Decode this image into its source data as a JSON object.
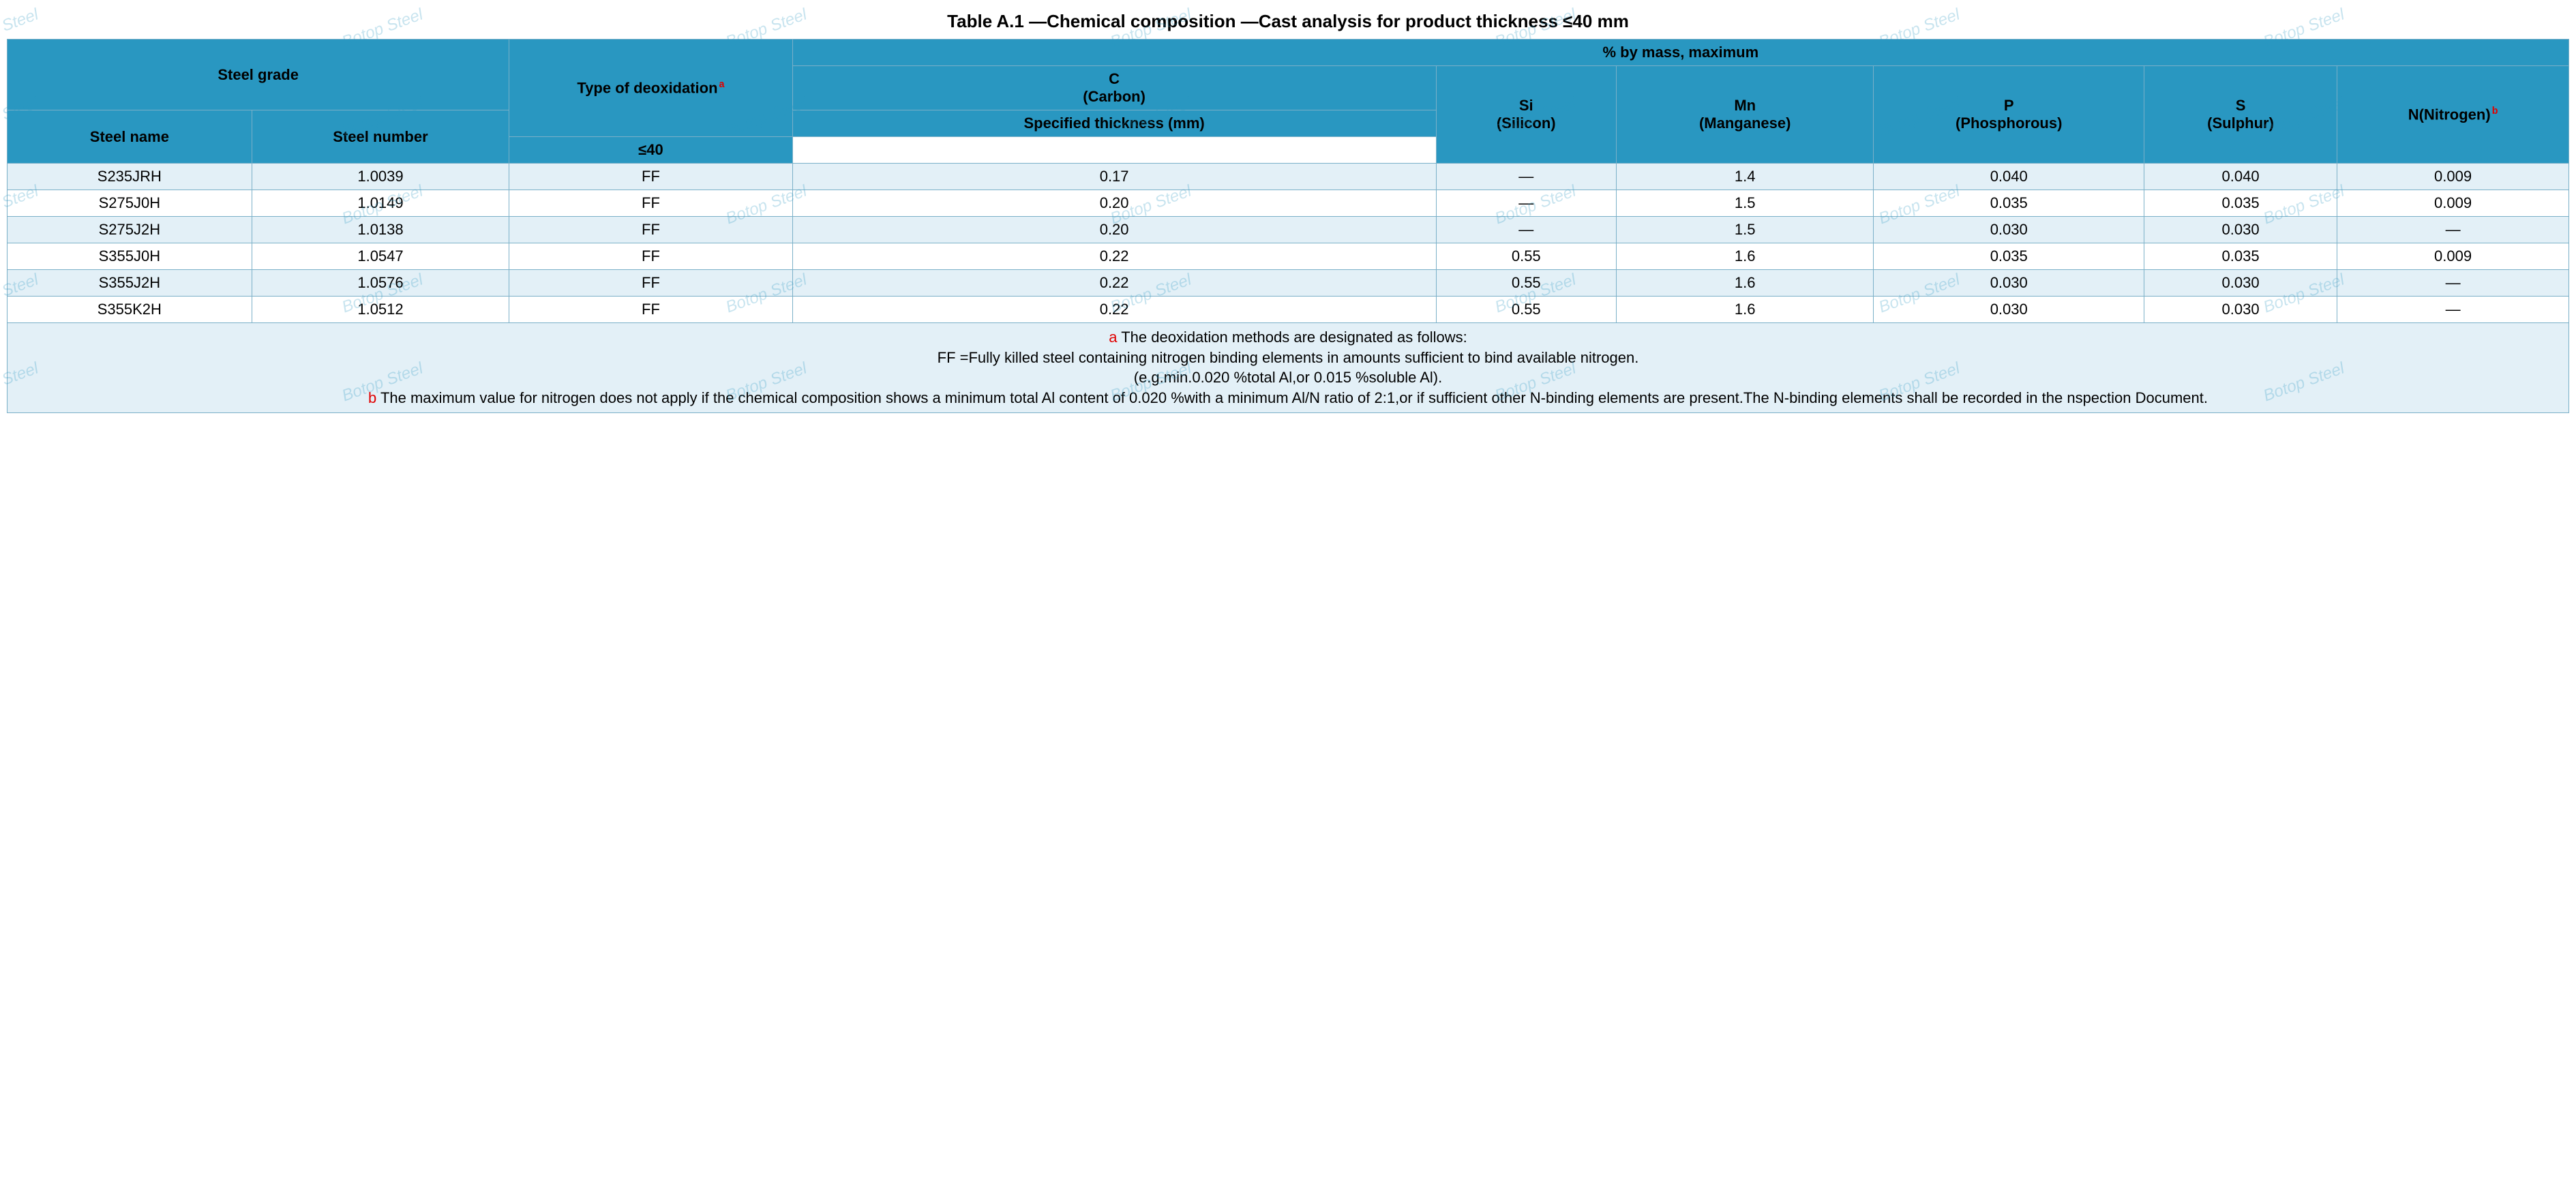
{
  "title": "Table A.1 —Chemical composition —Cast analysis for product thickness ≤40 mm",
  "headers": {
    "steel_grade": "Steel grade",
    "type_deox": "Type of deoxidation",
    "mass_max": "% by mass, maximum",
    "carbon": "C\n(Carbon)",
    "spec_thickness": "Specified thickness (mm)",
    "le40": "≤40",
    "si": "Si\n(Silicon)",
    "mn": "Mn\n(Manganese)",
    "p": "P\n(Phosphorous)",
    "s": "S\n(Sulphur)",
    "n": "N(Nitrogen)",
    "steel_name": "Steel name",
    "steel_number": "Steel number",
    "sup_a": "a",
    "sup_b": "b"
  },
  "rows": [
    {
      "name": "S235JRH",
      "num": "1.0039",
      "deox": "FF",
      "c": "0.17",
      "si": "—",
      "mn": "1.4",
      "p": "0.040",
      "s": "0.040",
      "n": "0.009"
    },
    {
      "name": "S275J0H",
      "num": "1.0149",
      "deox": "FF",
      "c": "0.20",
      "si": "—",
      "mn": "1.5",
      "p": "0.035",
      "s": "0.035",
      "n": "0.009"
    },
    {
      "name": "S275J2H",
      "num": "1.0138",
      "deox": "FF",
      "c": "0.20",
      "si": "—",
      "mn": "1.5",
      "p": "0.030",
      "s": "0.030",
      "n": "—"
    },
    {
      "name": "S355J0H",
      "num": "1.0547",
      "deox": "FF",
      "c": "0.22",
      "si": "0.55",
      "mn": "1.6",
      "p": "0.035",
      "s": "0.035",
      "n": "0.009"
    },
    {
      "name": "S355J2H",
      "num": "1.0576",
      "deox": "FF",
      "c": "0.22",
      "si": "0.55",
      "mn": "1.6",
      "p": "0.030",
      "s": "0.030",
      "n": "—"
    },
    {
      "name": "S355K2H",
      "num": "1.0512",
      "deox": "FF",
      "c": "0.22",
      "si": "0.55",
      "mn": "1.6",
      "p": "0.030",
      "s": "0.030",
      "n": "—"
    }
  ],
  "notes": {
    "a_label": "a",
    "a_text": " The deoxidation methods are designated as follows:",
    "a_line2": "FF =Fully killed steel containing nitrogen binding elements in amounts sufficient to bind available nitrogen.",
    "a_line3": "(e.g.min.0.020 %total Al,or 0.015 %soluble Al).",
    "b_label": "b",
    "b_text": " The maximum value for nitrogen does not apply if the chemical composition shows a minimum total Al content of 0.020 %with a minimum Al/N ratio of 2:1,or if sufficient other N-binding elements are present.The N-binding elements shall be recorded in the nspection Document."
  },
  "watermark": "Botop Steel",
  "style": {
    "header_bg": "#2997c1",
    "row_odd_bg": "#e3f0f7",
    "row_even_bg": "#ffffff",
    "border_color": "#7ab0c8",
    "footnote_color": "#e00000",
    "title_fontsize": 26,
    "body_fontsize": 22
  }
}
